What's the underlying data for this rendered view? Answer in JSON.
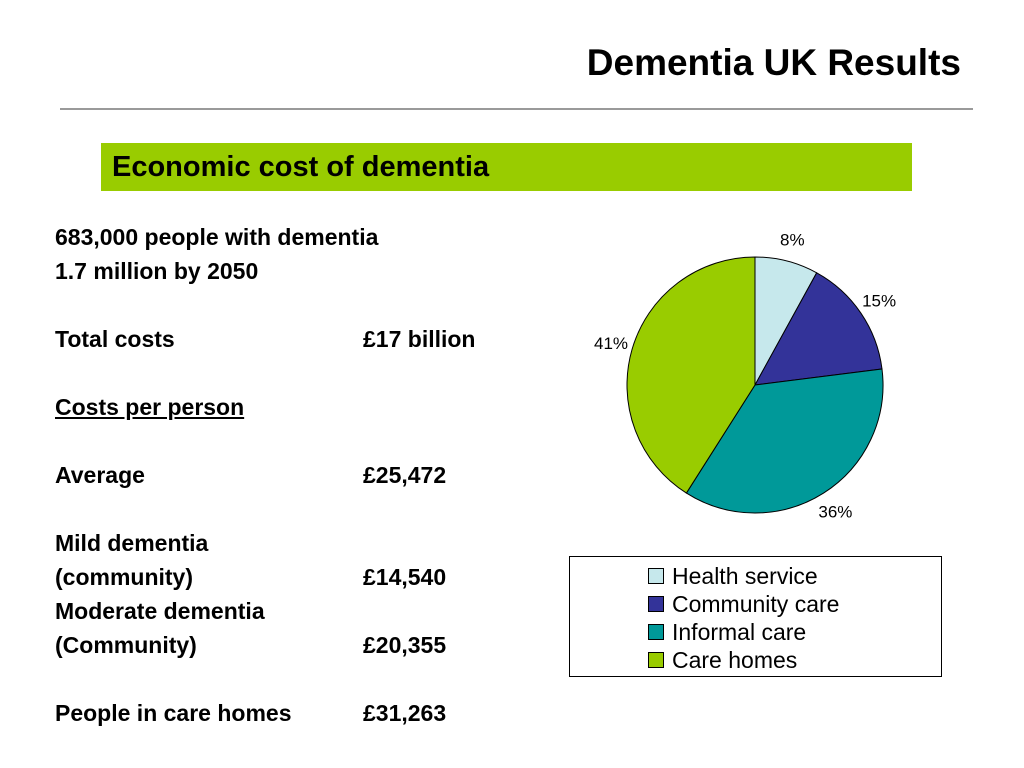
{
  "slide": {
    "title": "Dementia UK Results",
    "banner": "Economic cost of dementia",
    "accent_color": "#99cc00"
  },
  "facts": {
    "people": "683,000 people with dementia",
    "projection": "1.7 million by 2050",
    "total_label": "Total costs",
    "total_value": "£17 billion",
    "per_person_heading": "Costs per person",
    "average_label": "Average",
    "average_value": "£25,472",
    "mild_label_1": "Mild dementia",
    "mild_label_2": "(community)",
    "mild_value": "£14,540",
    "moderate_label_1": "Moderate dementia",
    "moderate_label_2": "(Community)",
    "moderate_value": "£20,355",
    "carehomes_label": "People in care homes",
    "carehomes_value": "£31,263"
  },
  "chart_data": {
    "type": "pie",
    "title": "",
    "categories": [
      "Health service",
      "Community care",
      "Informal care",
      "Care homes"
    ],
    "values": [
      8,
      15,
      36,
      41
    ],
    "labels": [
      "8%",
      "15%",
      "36%",
      "41%"
    ],
    "colors": [
      "#c6e8ec",
      "#333399",
      "#009999",
      "#99cc00"
    ],
    "start": "12 o'clock",
    "direction": "clockwise",
    "legend": "bottom-right"
  }
}
